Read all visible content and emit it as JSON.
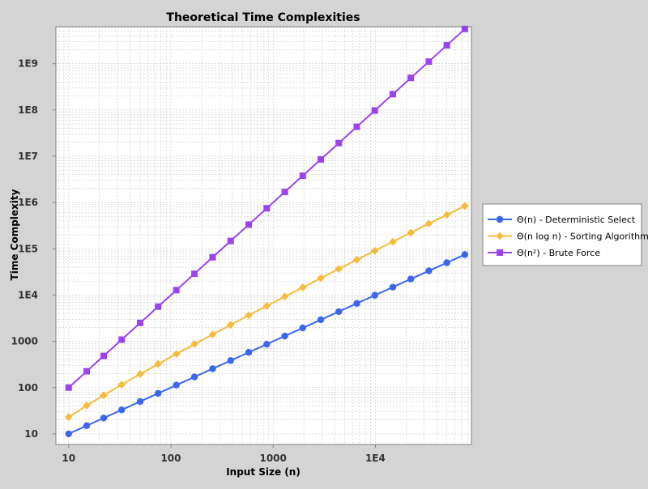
{
  "chart_data": {
    "type": "line",
    "title": "Theoretical Time Complexities",
    "xlabel": "Input Size (n)",
    "ylabel": "Time Complexity",
    "x_scale": "log",
    "y_scale": "log",
    "xlim": [
      7.5,
      87000
    ],
    "ylim": [
      5.9,
      6300000000
    ],
    "x_ticks": [
      {
        "value": 10,
        "label": "10"
      },
      {
        "value": 100,
        "label": "100"
      },
      {
        "value": 1000,
        "label": "1000"
      },
      {
        "value": 10000,
        "label": "1E4"
      }
    ],
    "y_ticks": [
      {
        "value": 10,
        "label": "10"
      },
      {
        "value": 100,
        "label": "100"
      },
      {
        "value": 1000,
        "label": "1000"
      },
      {
        "value": 10000,
        "label": "1E4"
      },
      {
        "value": 100000,
        "label": "1E5"
      },
      {
        "value": 1000000,
        "label": "1E6"
      },
      {
        "value": 10000000,
        "label": "1E7"
      },
      {
        "value": 100000000,
        "label": "1E8"
      },
      {
        "value": 1000000000,
        "label": "1E9"
      }
    ],
    "grid": true,
    "legend_position": "right",
    "x": [
      10,
      15,
      22,
      33,
      50,
      75,
      113,
      170,
      256,
      384,
      577,
      866,
      1300,
      1950,
      2925,
      4388,
      6583,
      9875,
      14813,
      22220,
      33330,
      50000,
      75000
    ],
    "series": [
      {
        "name": "Θ(n) - Deterministic Select",
        "color": "#3a66f0",
        "marker": "circle",
        "values": [
          10,
          15,
          22,
          33,
          50,
          75,
          113,
          170,
          256,
          384,
          577,
          866,
          1300,
          1950,
          2925,
          4388,
          6583,
          9875,
          14813,
          22220,
          33330,
          50000,
          75000
        ]
      },
      {
        "name": "Θ(n log n) - Sorting Algorithms",
        "color": "#f7bb3c",
        "marker": "diamond",
        "values": [
          23,
          41,
          68,
          116,
          196,
          324,
          533,
          870,
          1410,
          2260,
          3640,
          5830,
          9280,
          14600,
          23200,
          36700,
          57800,
          90900,
          142000,
          223000,
          350000,
          540000,
          840000
        ]
      },
      {
        "name": "Θ(n²) - Brute Force",
        "color": "#9b43ef",
        "marker": "square",
        "values": [
          100,
          225,
          484,
          1089,
          2500,
          5625,
          12769,
          28900,
          65536,
          147456,
          332929,
          749956,
          1690000,
          3802500,
          8555625,
          19254544,
          43335889,
          97515625,
          219424969,
          493728400,
          1110888900,
          2500000000,
          5625000000
        ]
      }
    ]
  }
}
